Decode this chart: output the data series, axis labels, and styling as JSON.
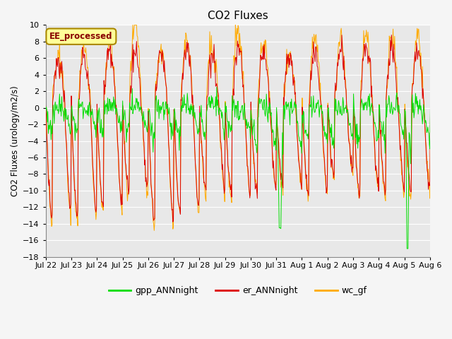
{
  "title": "CO2 Fluxes",
  "ylabel": "CO2 Fluxes (urology/m2/s)",
  "ylim": [
    -18,
    10
  ],
  "yticks": [
    -18,
    -16,
    -14,
    -12,
    -10,
    -8,
    -6,
    -4,
    -2,
    0,
    2,
    4,
    6,
    8,
    10
  ],
  "gpp_color": "#00dd00",
  "er_color": "#dd0000",
  "wc_color": "#ffaa00",
  "annotation_text": "EE_processed",
  "annotation_bg": "#ffff99",
  "annotation_border": "#aa8800",
  "legend_labels": [
    "gpp_ANNnight",
    "er_ANNnight",
    "wc_gf"
  ],
  "background_color": "#e8e8e8",
  "grid_color": "#ffffff",
  "date_labels": [
    "Jul 22",
    "Jul 23",
    "Jul 24",
    "Jul 25",
    "Jul 26",
    "Jul 27",
    "Jul 28",
    "Jul 29",
    "Jul 30",
    "Jul 31",
    "Aug 1",
    "Aug 2",
    "Aug 3",
    "Aug 4",
    "Aug 5",
    "Aug 6"
  ],
  "n_days": 16,
  "n_per_day": 48
}
